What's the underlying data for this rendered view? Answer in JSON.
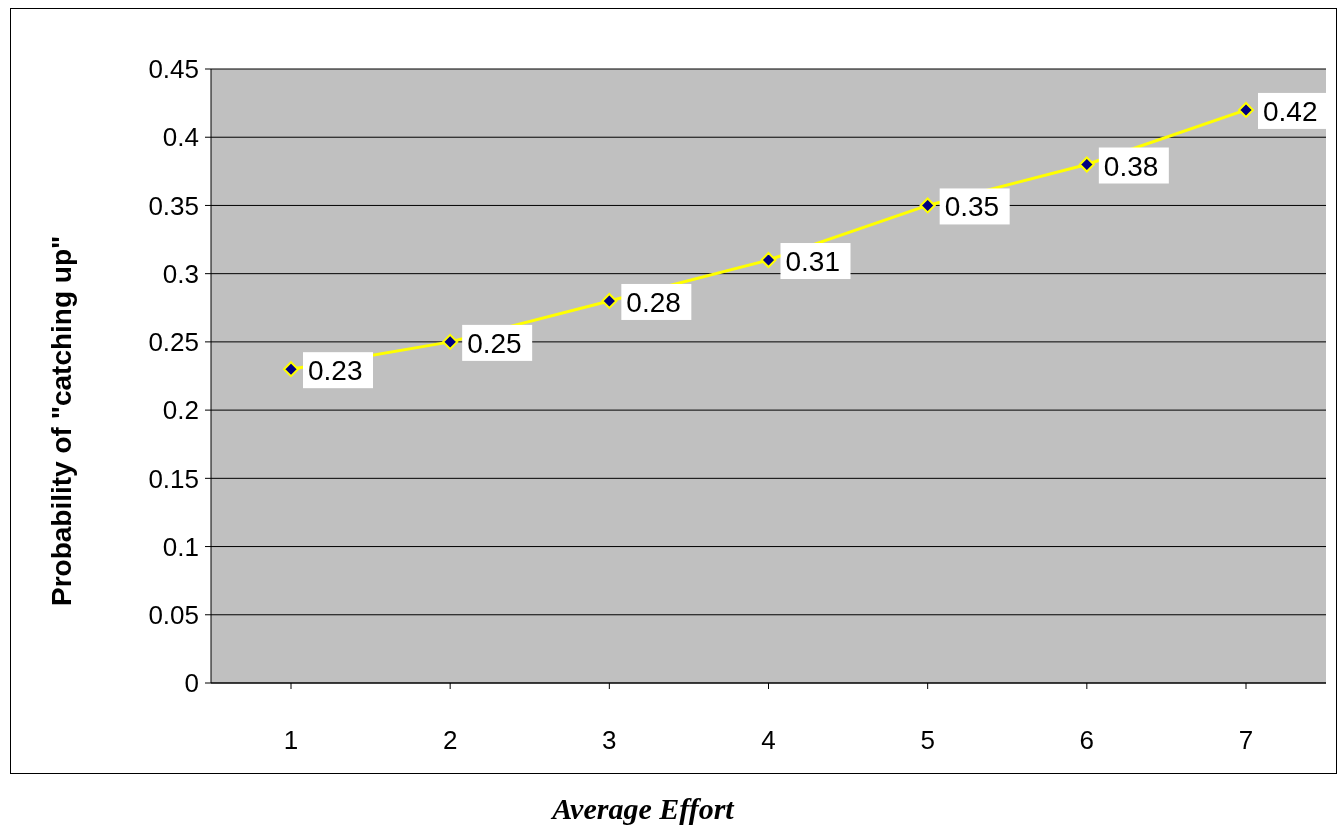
{
  "chart_data": {
    "type": "line",
    "xlabel": "Average Effort",
    "ylabel": "Probability of \"catching up\"",
    "categories": [
      "1",
      "2",
      "3",
      "4",
      "5",
      "6",
      "7"
    ],
    "series": [
      {
        "color": "#ffff00",
        "values": [
          0.23,
          0.25,
          0.28,
          0.31,
          0.35,
          0.38,
          0.42
        ]
      }
    ],
    "ylim": [
      0,
      0.45
    ],
    "yticks": [
      0,
      0.05,
      0.1,
      0.15,
      0.2,
      0.25,
      0.3,
      0.35,
      0.4,
      0.45
    ],
    "grid": "y",
    "marker": "diamond",
    "line_style": "solid",
    "data_labels": true
  }
}
